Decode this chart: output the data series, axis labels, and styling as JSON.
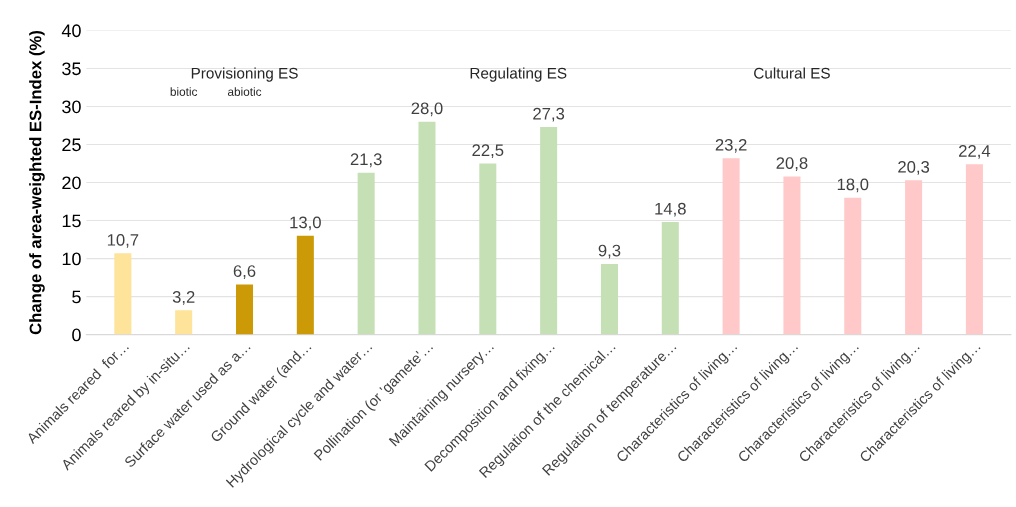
{
  "chart_data": {
    "type": "bar",
    "ylabel": "Change of area-weighted ES-Index (%)",
    "categories": [
      "Animals reared  for…",
      "Animals reared by in-situ…",
      "Surface water used as a…",
      "Ground water (and…",
      "Hydrological cycle and water…",
      "Pollination (or 'gamete'…",
      "Maintaining nursery…",
      "Decomposition and fixing…",
      "Regulation of the chemical…",
      "Regulation of temperature…",
      "Characteristics of living…",
      "Characteristics of living…",
      "Characteristics of living…",
      "Characteristics of living…",
      "Characteristics of living…"
    ],
    "values": [
      10.7,
      3.2,
      6.6,
      13.0,
      21.3,
      28.0,
      22.5,
      27.3,
      9.3,
      14.8,
      23.2,
      20.8,
      18.0,
      20.3,
      22.4
    ],
    "value_labels": [
      "10,7",
      "3,2",
      "6,6",
      "13,0",
      "21,3",
      "28,0",
      "22,5",
      "27,3",
      "9,3",
      "14,8",
      "23,2",
      "20,8",
      "18,0",
      "20,3",
      "22,4"
    ],
    "colors": [
      "#fde49a",
      "#fde49a",
      "#cc9a06",
      "#cc9a06",
      "#c5e0b4",
      "#c5e0b4",
      "#c5e0b4",
      "#c5e0b4",
      "#c5e0b4",
      "#c5e0b4",
      "#ffc9c9",
      "#ffc9c9",
      "#ffc9c9",
      "#ffc9c9",
      "#ffc9c9"
    ],
    "ylim": [
      0,
      40
    ],
    "yticks": [
      0,
      5,
      10,
      15,
      20,
      25,
      30,
      35,
      40
    ],
    "grid": "y",
    "annotations": [
      "Provisioning ES",
      "biotic",
      "abiotic",
      "Regulating ES",
      "Cultural ES"
    ]
  }
}
